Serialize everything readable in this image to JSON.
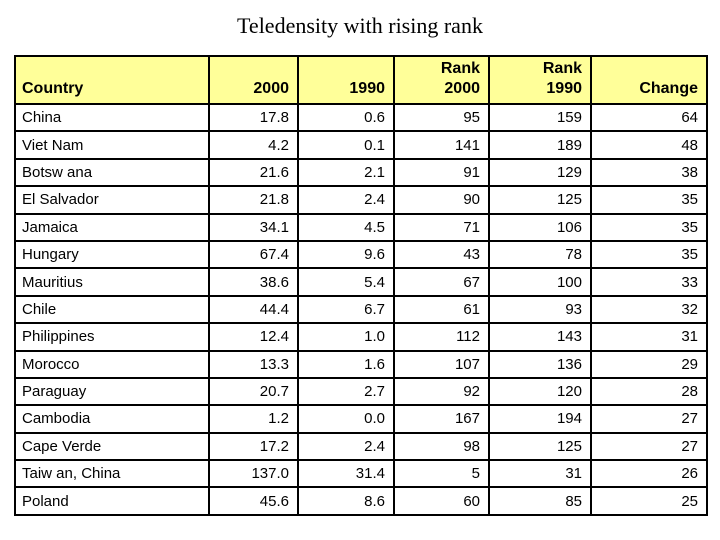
{
  "title": "Teledensity with rising rank",
  "style": {
    "page_bg": "#ffffff",
    "text_color": "#000000",
    "header_bg": "#ffff99",
    "border_color": "#000000"
  },
  "chart_data": {
    "type": "table",
    "title": "Teledensity with rising rank",
    "columns": [
      "Country",
      "2000",
      "1990",
      "Rank 2000",
      "Rank 1990",
      "Change"
    ],
    "header_display_lines": [
      "Country",
      "2000",
      "1990",
      "Rank\n2000",
      "Rank\n1990",
      "Change"
    ],
    "rows": [
      [
        "China",
        "17.8",
        "0.6",
        "95",
        "159",
        "64"
      ],
      [
        "Viet Nam",
        "4.2",
        "0.1",
        "141",
        "189",
        "48"
      ],
      [
        "Botsw ana",
        "21.6",
        "2.1",
        "91",
        "129",
        "38"
      ],
      [
        "El Salvador",
        "21.8",
        "2.4",
        "90",
        "125",
        "35"
      ],
      [
        "Jamaica",
        "34.1",
        "4.5",
        "71",
        "106",
        "35"
      ],
      [
        "Hungary",
        "67.4",
        "9.6",
        "43",
        "78",
        "35"
      ],
      [
        "Mauritius",
        "38.6",
        "5.4",
        "67",
        "100",
        "33"
      ],
      [
        "Chile",
        "44.4",
        "6.7",
        "61",
        "93",
        "32"
      ],
      [
        "Philippines",
        "12.4",
        "1.0",
        "112",
        "143",
        "31"
      ],
      [
        "Morocco",
        "13.3",
        "1.6",
        "107",
        "136",
        "29"
      ],
      [
        "Paraguay",
        "20.7",
        "2.7",
        "92",
        "120",
        "28"
      ],
      [
        "Cambodia",
        "1.2",
        "0.0",
        "167",
        "194",
        "27"
      ],
      [
        "Cape Verde",
        "17.2",
        "2.4",
        "98",
        "125",
        "27"
      ],
      [
        "Taiw an, China",
        "137.0",
        "31.4",
        "5",
        "31",
        "26"
      ],
      [
        "Poland",
        "45.6",
        "8.6",
        "60",
        "85",
        "25"
      ]
    ]
  }
}
